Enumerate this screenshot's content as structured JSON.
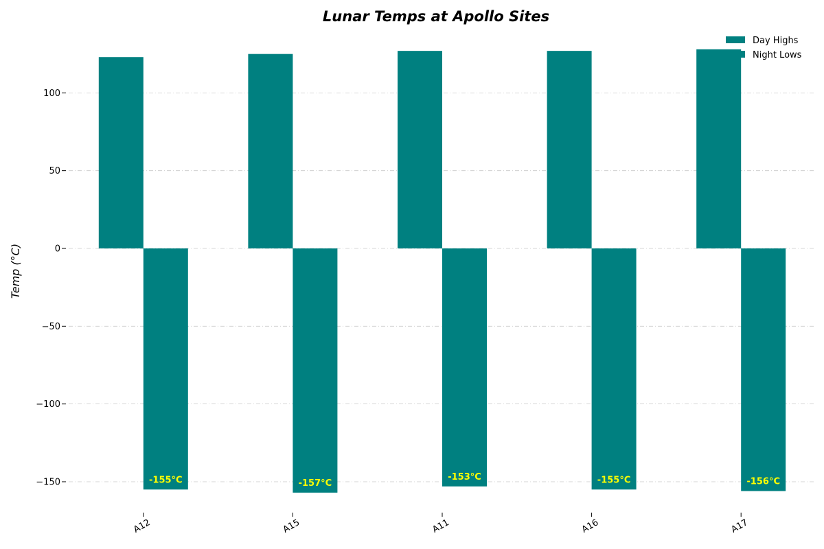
{
  "chart_data": {
    "type": "bar",
    "title": "Lunar Temps at Apollo Sites",
    "ylabel": "Temp (°C)",
    "xlabel": "",
    "categories": [
      "A12",
      "A15",
      "A11",
      "A16",
      "A17"
    ],
    "series": [
      {
        "name": "Day Highs",
        "values": [
          123,
          125,
          127,
          127,
          128
        ],
        "color": "#008080"
      },
      {
        "name": "Night Lows",
        "values": [
          -155,
          -157,
          -153,
          -155,
          -156
        ],
        "color": "#008080"
      }
    ],
    "data_labels": [
      "-155°C",
      "-157°C",
      "-153°C",
      "-155°C",
      "-156°C"
    ],
    "data_label_color": "#ffff00",
    "yticks": [
      -150,
      -100,
      -50,
      0,
      50,
      100
    ],
    "ytick_labels": [
      "−150",
      "−100",
      "−50",
      "0",
      "50",
      "100"
    ],
    "ylim": [
      -170,
      140
    ],
    "grid": true,
    "legend": "top-right"
  }
}
